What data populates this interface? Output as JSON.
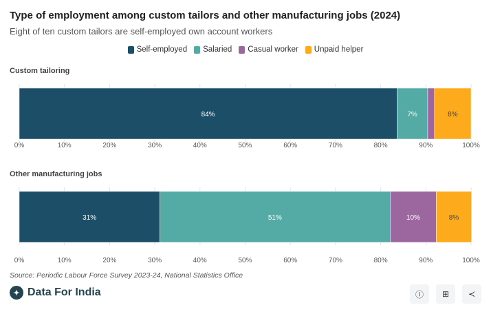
{
  "chart_data": {
    "type": "bar",
    "orientation": "horizontal-stacked-100",
    "title": "Type of employment among custom tailors and other manufacturing jobs (2024)",
    "subtitle": "Eight of ten custom tailors are self-employed own account workers",
    "legend": [
      {
        "name": "Self-employed",
        "color": "#1c4f67"
      },
      {
        "name": "Salaried",
        "color": "#54aba5"
      },
      {
        "name": "Casual worker",
        "color": "#9c669f"
      },
      {
        "name": "Unpaid helper",
        "color": "#fdaa1d"
      }
    ],
    "legend_position": "top-center",
    "panels": [
      {
        "title": "Custom tailoring",
        "values": [
          83.6,
          6.8,
          1.5,
          8.1
        ],
        "labels": [
          "84%",
          "7%",
          "",
          "8%"
        ]
      },
      {
        "title": "Other manufacturing jobs",
        "values": [
          31.1,
          51.0,
          10.2,
          7.8
        ],
        "labels": [
          "31%",
          "51%",
          "10%",
          "8%"
        ]
      }
    ],
    "xticks": [
      "0%",
      "10%",
      "20%",
      "30%",
      "40%",
      "50%",
      "60%",
      "70%",
      "80%",
      "90%",
      "100%"
    ],
    "xlim": [
      0,
      100
    ],
    "grid": true
  },
  "source": "Source: Periodic Labour Force Survey 2023-24, National Statistics Office",
  "brand": "Data For India",
  "buttons": {
    "info": "info-icon",
    "table": "table-icon",
    "share": "share-icon"
  }
}
